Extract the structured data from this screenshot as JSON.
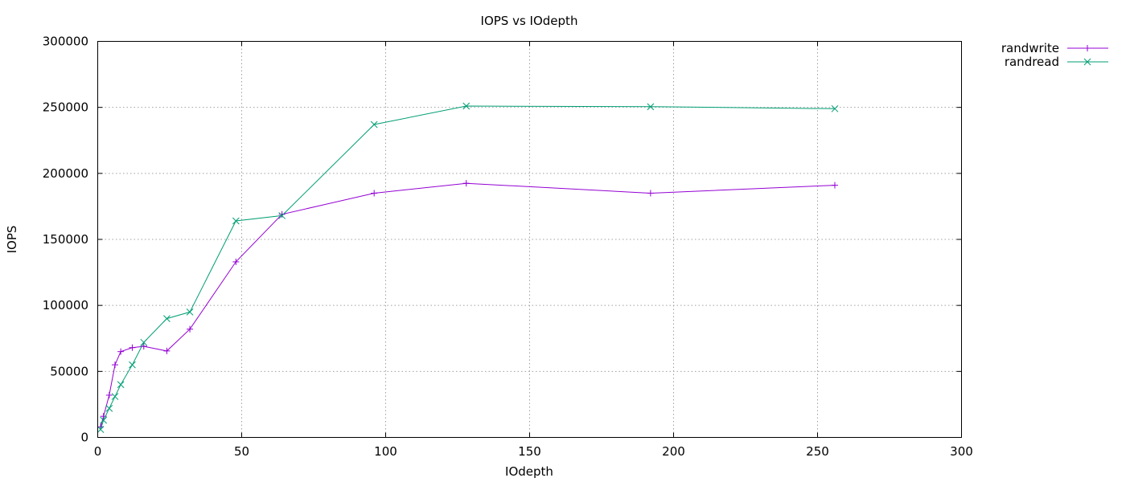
{
  "chart_data": {
    "type": "line",
    "title": "IOPS vs IOdepth",
    "xlabel": "IOdepth",
    "ylabel": "IOPS",
    "xlim": [
      0,
      300
    ],
    "ylim": [
      0,
      300000
    ],
    "xticks": [
      0,
      50,
      100,
      150,
      200,
      250,
      300
    ],
    "yticks": [
      0,
      50000,
      100000,
      150000,
      200000,
      250000,
      300000
    ],
    "xtick_labels": [
      "0",
      "50",
      "100",
      "150",
      "200",
      "250",
      "300"
    ],
    "ytick_labels": [
      "0",
      "50000",
      "100000",
      "150000",
      "200000",
      "250000",
      "300000"
    ],
    "grid": true,
    "legend_position": "outside-top-right",
    "series": [
      {
        "name": "randwrite",
        "color": "#9400d3",
        "marker": "plus",
        "x": [
          1,
          2,
          4,
          6,
          8,
          12,
          16,
          24,
          32,
          48,
          64,
          96,
          128,
          192,
          256
        ],
        "y": [
          8000,
          16000,
          32000,
          55000,
          65000,
          68000,
          69000,
          65500,
          82000,
          133000,
          169000,
          185000,
          192500,
          185000,
          191000
        ]
      },
      {
        "name": "randread",
        "color": "#009e73",
        "marker": "cross",
        "x": [
          1,
          2,
          4,
          6,
          8,
          12,
          16,
          24,
          32,
          48,
          64,
          96,
          128,
          192,
          256
        ],
        "y": [
          6000,
          13000,
          22000,
          31000,
          40000,
          55000,
          72000,
          90000,
          95000,
          164000,
          168000,
          237000,
          251000,
          250500,
          249000
        ]
      }
    ]
  }
}
